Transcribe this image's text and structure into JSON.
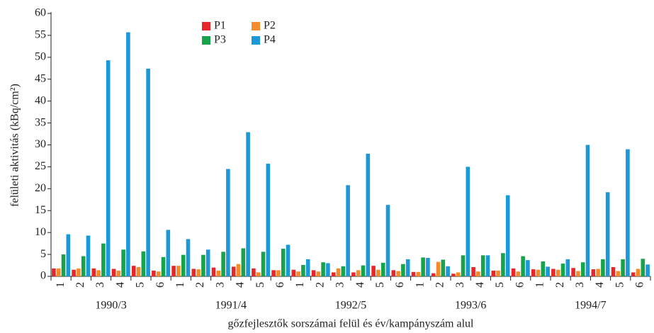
{
  "chart_data": {
    "type": "bar",
    "ylabel": "felületi aktivitás (kBq/cm²)",
    "xlabel": "gőzfejlesztők sorszámai felül és év/kampányszám alul",
    "categories": [
      "1",
      "2",
      "3",
      "4",
      "5",
      "6",
      "1",
      "2",
      "3",
      "4",
      "5",
      "6",
      "1",
      "2",
      "3",
      "4",
      "5",
      "6",
      "1",
      "2",
      "3",
      "4",
      "5",
      "6",
      "1",
      "2",
      "3",
      "4",
      "5",
      "6"
    ],
    "groups": [
      "1990/3",
      "1991/4",
      "1992/5",
      "1993/6",
      "1994/7"
    ],
    "series": [
      {
        "name": "P1",
        "color": "#e8262a",
        "values": [
          1.8,
          1.5,
          1.8,
          1.7,
          2.4,
          1.3,
          2.4,
          1.7,
          2.0,
          2.2,
          1.8,
          1.4,
          1.5,
          1.4,
          0.9,
          0.9,
          2.4,
          1.4,
          1.0,
          0.7,
          0.6,
          2.1,
          1.3,
          1.8,
          1.6,
          1.7,
          1.9,
          1.6,
          2.1,
          0.9
        ]
      },
      {
        "name": "P2",
        "color": "#f58a2a",
        "values": [
          1.8,
          1.8,
          1.4,
          1.3,
          2.1,
          1.1,
          2.4,
          1.6,
          1.3,
          2.8,
          0.9,
          1.4,
          1.1,
          1.1,
          1.8,
          1.4,
          1.5,
          1.2,
          1.0,
          3.3,
          0.9,
          1.1,
          1.3,
          1.1,
          1.5,
          1.5,
          1.2,
          1.7,
          1.2,
          1.7
        ]
      },
      {
        "name": "P3",
        "color": "#17a34a",
        "values": [
          5.0,
          4.6,
          7.5,
          6.1,
          5.7,
          4.4,
          4.9,
          4.9,
          5.6,
          6.4,
          5.6,
          6.3,
          2.6,
          3.2,
          2.3,
          2.5,
          3.1,
          2.8,
          4.3,
          3.8,
          4.8,
          4.8,
          5.3,
          4.6,
          3.4,
          2.9,
          3.2,
          3.9,
          3.9,
          4.0
        ]
      },
      {
        "name": "P4",
        "color": "#1b98d8",
        "values": [
          9.6,
          9.3,
          49.3,
          55.7,
          47.4,
          10.6,
          8.5,
          6.1,
          24.5,
          32.9,
          25.7,
          7.2,
          3.9,
          3.0,
          20.8,
          28.0,
          16.3,
          3.9,
          4.2,
          2.3,
          25.0,
          4.8,
          18.5,
          3.7,
          2.2,
          3.9,
          30.0,
          19.2,
          29.0,
          2.7
        ]
      }
    ],
    "ylim": [
      0,
      60
    ],
    "yticks": [
      0,
      5,
      10,
      15,
      20,
      25,
      30,
      35,
      40,
      45,
      50,
      55,
      60
    ]
  }
}
